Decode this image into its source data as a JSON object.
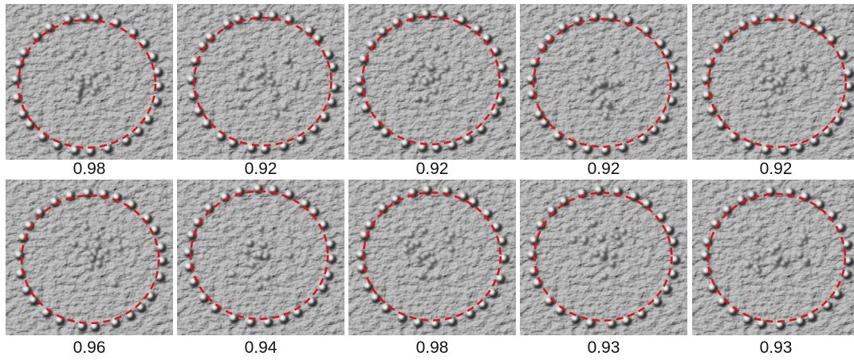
{
  "panels": [
    [
      "0.98",
      "0.92",
      "0.92",
      "0.92",
      "0.92"
    ],
    [
      "0.96",
      "0.94",
      "0.98",
      "0.93",
      "0.93"
    ]
  ]
}
